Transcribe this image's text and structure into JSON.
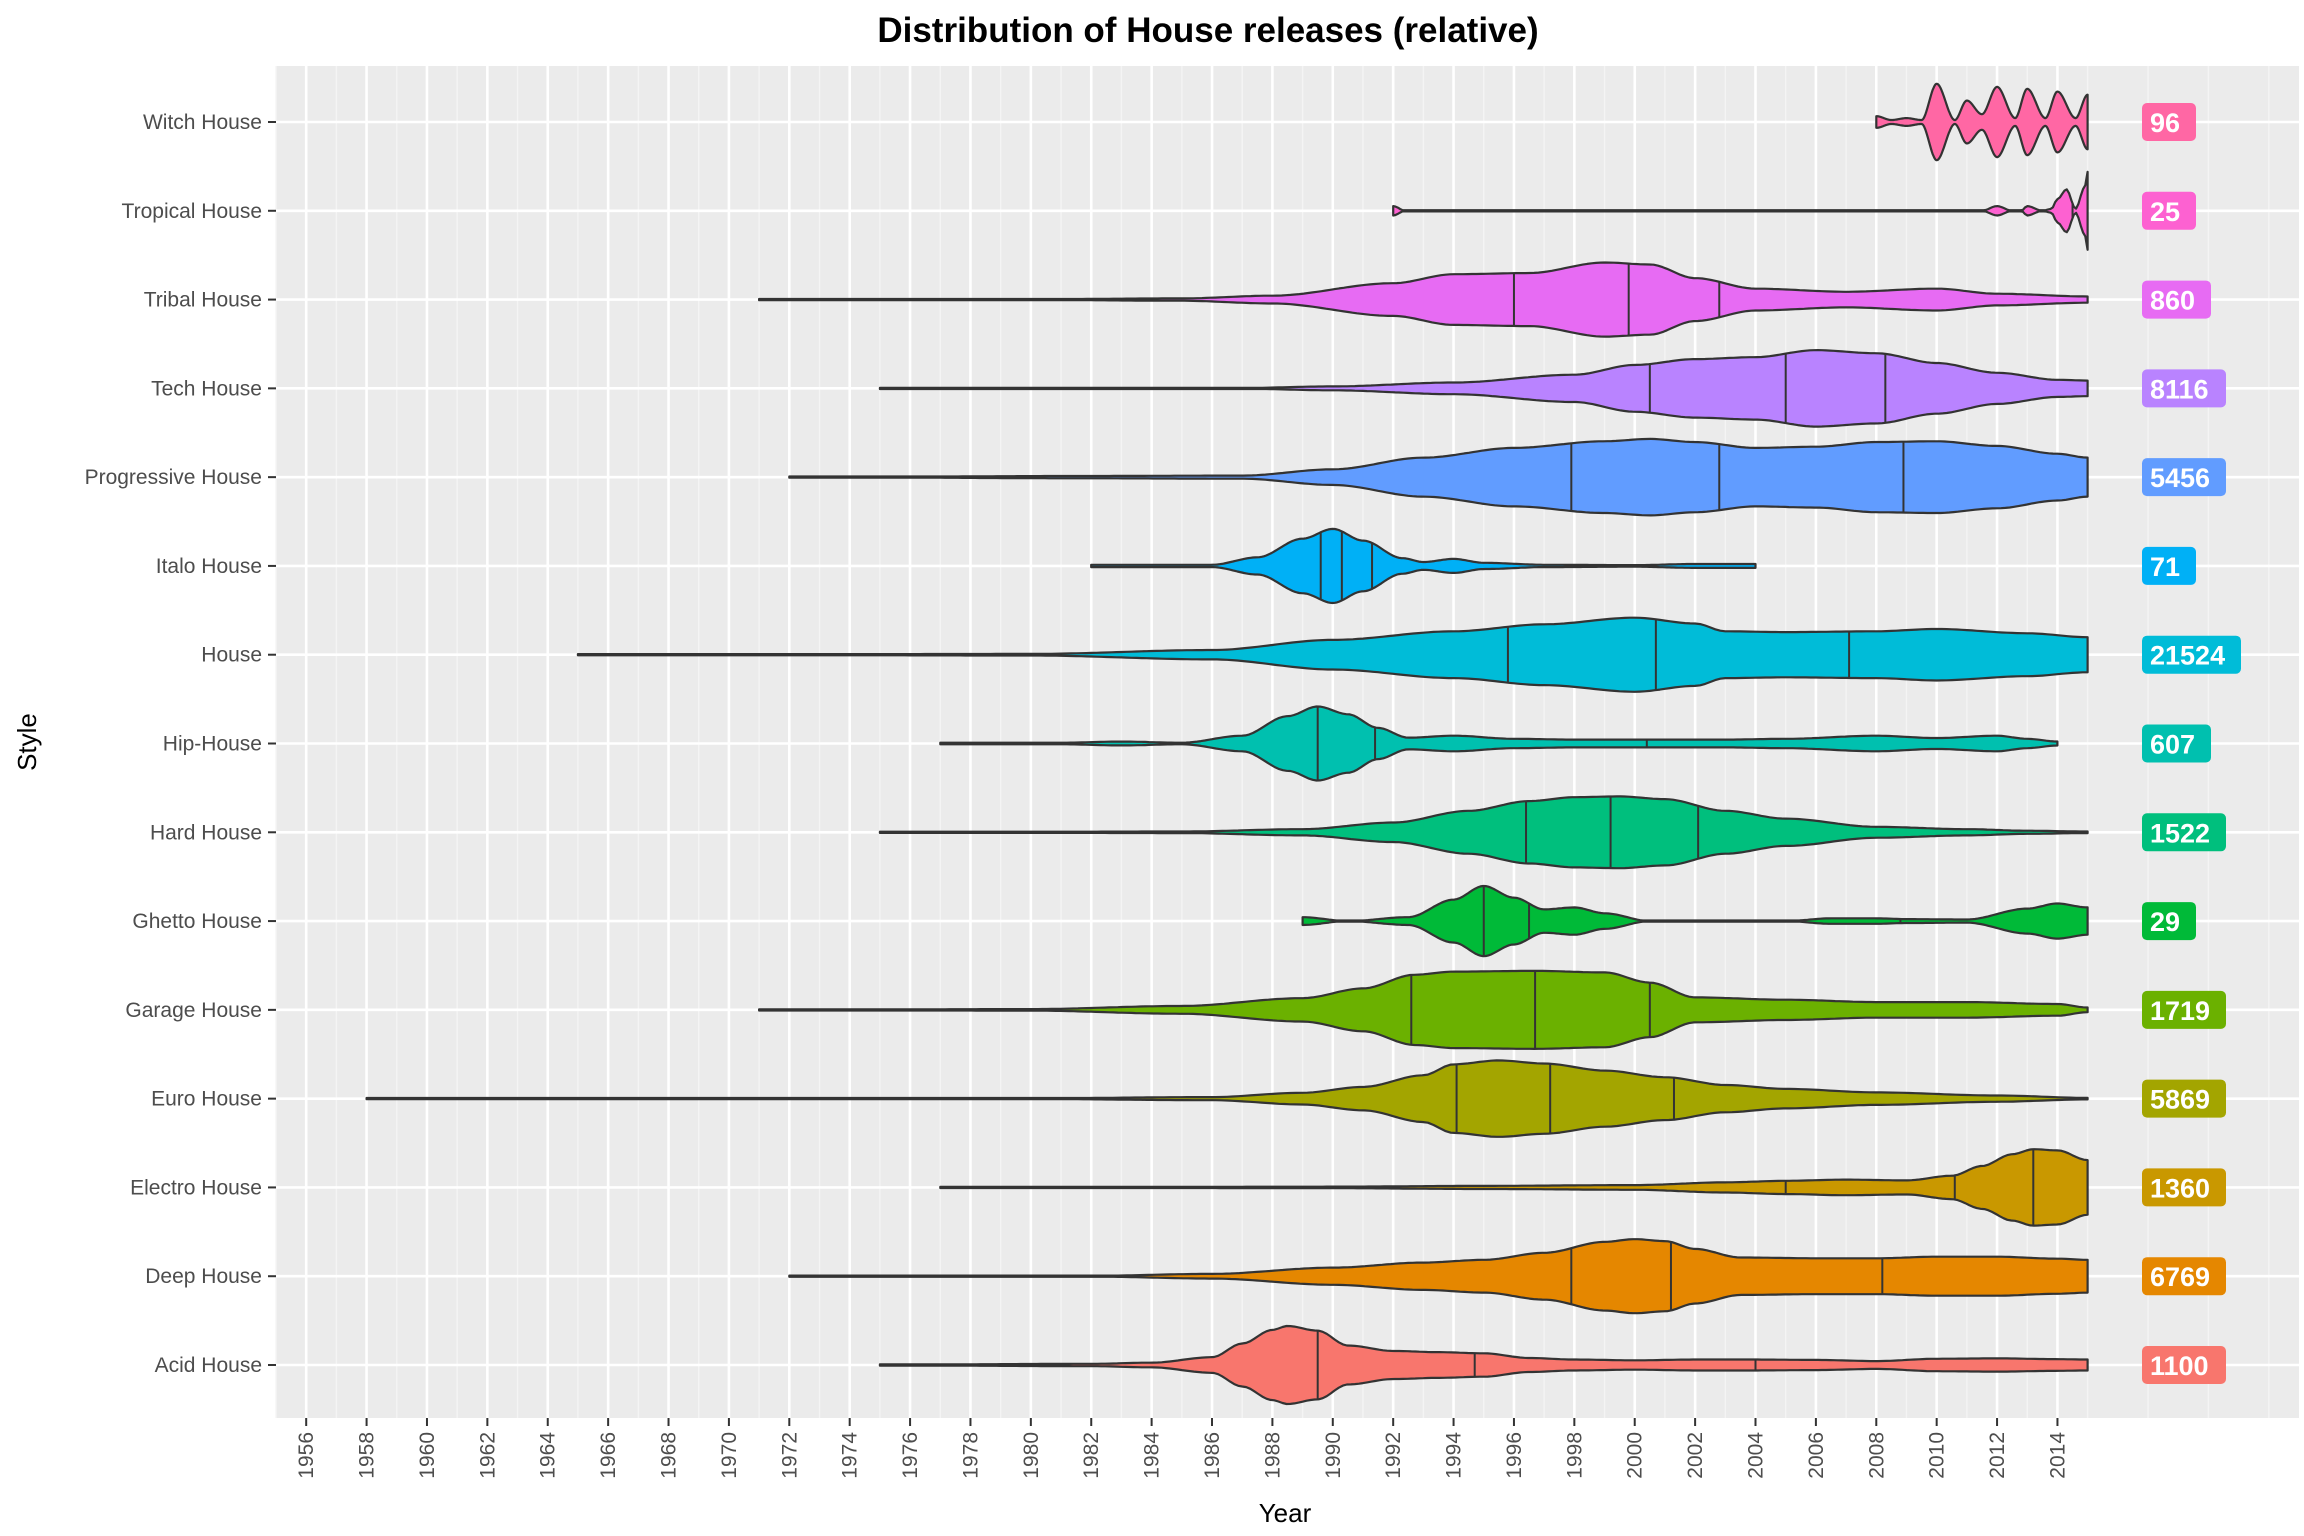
{
  "chart_data": {
    "type": "violin",
    "title": "Distribution of House releases (relative)",
    "xlabel": "Year",
    "ylabel": "Style",
    "xlim": [
      1955,
      2022
    ],
    "x_ticks": [
      1956,
      1958,
      1960,
      1962,
      1964,
      1966,
      1968,
      1970,
      1972,
      1974,
      1976,
      1978,
      1980,
      1982,
      1984,
      1986,
      1988,
      1990,
      1992,
      1994,
      1996,
      1998,
      2000,
      2002,
      2004,
      2006,
      2008,
      2010,
      2012,
      2014
    ],
    "grid": true,
    "legend": "none",
    "categories": [
      "Acid House",
      "Deep House",
      "Electro House",
      "Euro House",
      "Garage House",
      "Ghetto House",
      "Hard House",
      "Hip-House",
      "House",
      "Italo House",
      "Progressive House",
      "Tech House",
      "Tribal House",
      "Tropical House",
      "Witch House"
    ],
    "series": [
      {
        "name": "Acid House",
        "count": "1100",
        "color": "#F8766D",
        "range": [
          1975,
          2015
        ],
        "quantiles": [
          1989.5,
          1994.7,
          2004
        ],
        "density": [
          [
            1975,
            0.01
          ],
          [
            1982,
            0.03
          ],
          [
            1984,
            0.06
          ],
          [
            1986,
            0.2
          ],
          [
            1987,
            0.55
          ],
          [
            1988,
            0.9
          ],
          [
            1988.5,
            1.0
          ],
          [
            1989.5,
            0.88
          ],
          [
            1990.5,
            0.5
          ],
          [
            1992,
            0.36
          ],
          [
            1993.5,
            0.33
          ],
          [
            1995,
            0.3
          ],
          [
            1996.5,
            0.18
          ],
          [
            1998,
            0.14
          ],
          [
            2000,
            0.12
          ],
          [
            2002,
            0.14
          ],
          [
            2004,
            0.14
          ],
          [
            2006,
            0.13
          ],
          [
            2008,
            0.1
          ],
          [
            2010,
            0.16
          ],
          [
            2012,
            0.17
          ],
          [
            2014,
            0.15
          ],
          [
            2015,
            0.14
          ]
        ]
      },
      {
        "name": "Deep House",
        "count": "6769",
        "color": "#E58700",
        "range": [
          1972,
          2015
        ],
        "quantiles": [
          1997.9,
          2001.2,
          2008.2
        ],
        "density": [
          [
            1972,
            0.0
          ],
          [
            1982,
            0.01
          ],
          [
            1986,
            0.06
          ],
          [
            1990,
            0.22
          ],
          [
            1993,
            0.35
          ],
          [
            1995,
            0.42
          ],
          [
            1997,
            0.6
          ],
          [
            1999,
            0.88
          ],
          [
            2000,
            0.95
          ],
          [
            2001,
            0.9
          ],
          [
            2002,
            0.7
          ],
          [
            2003.5,
            0.48
          ],
          [
            2006,
            0.46
          ],
          [
            2008,
            0.46
          ],
          [
            2010,
            0.5
          ],
          [
            2012,
            0.5
          ],
          [
            2014,
            0.45
          ],
          [
            2015,
            0.42
          ]
        ]
      },
      {
        "name": "Electro House",
        "count": "1360",
        "color": "#C99800",
        "range": [
          1977,
          2015
        ],
        "quantiles": [
          2005,
          2010.6,
          2013.2
        ],
        "density": [
          [
            1977,
            0.0
          ],
          [
            1990,
            0.02
          ],
          [
            1995,
            0.04
          ],
          [
            2000,
            0.06
          ],
          [
            2003,
            0.13
          ],
          [
            2005,
            0.17
          ],
          [
            2007,
            0.2
          ],
          [
            2009,
            0.18
          ],
          [
            2010.5,
            0.3
          ],
          [
            2011.5,
            0.55
          ],
          [
            2012.5,
            0.85
          ],
          [
            2013.2,
            0.98
          ],
          [
            2014,
            0.95
          ],
          [
            2015,
            0.7
          ]
        ]
      },
      {
        "name": "Euro House",
        "count": "5869",
        "color": "#A3A500",
        "range": [
          1958,
          2015
        ],
        "quantiles": [
          1994.1,
          1997.2,
          2001.3
        ],
        "density": [
          [
            1958,
            0.0
          ],
          [
            1980,
            0.01
          ],
          [
            1986,
            0.04
          ],
          [
            1989,
            0.15
          ],
          [
            1991,
            0.3
          ],
          [
            1993,
            0.6
          ],
          [
            1994,
            0.88
          ],
          [
            1995.5,
            0.98
          ],
          [
            1997,
            0.9
          ],
          [
            1999,
            0.72
          ],
          [
            2001,
            0.55
          ],
          [
            2003,
            0.35
          ],
          [
            2005,
            0.25
          ],
          [
            2008,
            0.16
          ],
          [
            2012,
            0.08
          ],
          [
            2015,
            0.02
          ]
        ]
      },
      {
        "name": "Garage House",
        "count": "1719",
        "color": "#6BB100",
        "range": [
          1971,
          2015
        ],
        "quantiles": [
          1992.6,
          1996.7,
          2000.5
        ],
        "density": [
          [
            1971,
            0.0
          ],
          [
            1980,
            0.02
          ],
          [
            1985,
            0.1
          ],
          [
            1989,
            0.3
          ],
          [
            1991,
            0.55
          ],
          [
            1992.7,
            0.9
          ],
          [
            1994,
            0.98
          ],
          [
            1996.7,
            1.0
          ],
          [
            1999,
            0.96
          ],
          [
            2000.5,
            0.7
          ],
          [
            2002,
            0.32
          ],
          [
            2005,
            0.26
          ],
          [
            2008,
            0.2
          ],
          [
            2011,
            0.2
          ],
          [
            2014,
            0.15
          ],
          [
            2015,
            0.06
          ]
        ]
      },
      {
        "name": "Ghetto House",
        "count": "29",
        "color": "#00BA38",
        "range": [
          1989,
          2015
        ],
        "quantiles": [
          1995,
          1996.5,
          2008.8
        ],
        "density": [
          [
            1989,
            0.1
          ],
          [
            1990.5,
            0.0
          ],
          [
            1992.5,
            0.1
          ],
          [
            1994,
            0.55
          ],
          [
            1995,
            0.9
          ],
          [
            1996,
            0.6
          ],
          [
            1997,
            0.3
          ],
          [
            1998,
            0.35
          ],
          [
            1999,
            0.2
          ],
          [
            2000.5,
            0.0
          ],
          [
            2005,
            0.0
          ],
          [
            2006.5,
            0.07
          ],
          [
            2008,
            0.07
          ],
          [
            2009,
            0.05
          ],
          [
            2011,
            0.04
          ],
          [
            2013,
            0.32
          ],
          [
            2014,
            0.45
          ],
          [
            2015,
            0.35
          ]
        ]
      },
      {
        "name": "Hard House",
        "count": "1522",
        "color": "#00BF7D",
        "range": [
          1975,
          2015
        ],
        "quantiles": [
          1996.4,
          1999.2,
          2002.1
        ],
        "density": [
          [
            1975,
            0.0
          ],
          [
            1985,
            0.02
          ],
          [
            1989,
            0.08
          ],
          [
            1992,
            0.25
          ],
          [
            1994.5,
            0.55
          ],
          [
            1996.5,
            0.8
          ],
          [
            1998,
            0.9
          ],
          [
            1999.5,
            0.92
          ],
          [
            2001,
            0.85
          ],
          [
            2003,
            0.55
          ],
          [
            2005,
            0.35
          ],
          [
            2008,
            0.14
          ],
          [
            2011,
            0.08
          ],
          [
            2013,
            0.04
          ],
          [
            2015,
            0.02
          ]
        ]
      },
      {
        "name": "Hip-House",
        "count": "607",
        "color": "#00C0AF",
        "range": [
          1977,
          2014
        ],
        "quantiles": [
          1989.5,
          1991.4,
          2000.4
        ],
        "density": [
          [
            1977,
            0.02
          ],
          [
            1981,
            0.02
          ],
          [
            1983,
            0.05
          ],
          [
            1985,
            0.02
          ],
          [
            1987,
            0.2
          ],
          [
            1988.5,
            0.7
          ],
          [
            1989.5,
            0.95
          ],
          [
            1990.5,
            0.75
          ],
          [
            1991.5,
            0.4
          ],
          [
            1992.5,
            0.15
          ],
          [
            1994,
            0.2
          ],
          [
            1996,
            0.12
          ],
          [
            1998,
            0.1
          ],
          [
            2000,
            0.1
          ],
          [
            2003,
            0.1
          ],
          [
            2005,
            0.12
          ],
          [
            2008,
            0.2
          ],
          [
            2010,
            0.14
          ],
          [
            2012,
            0.2
          ],
          [
            2013,
            0.12
          ],
          [
            2014,
            0.05
          ]
        ]
      },
      {
        "name": "House",
        "count": "21524",
        "color": "#00BCD8",
        "range": [
          1965,
          2015
        ],
        "quantiles": [
          1995.8,
          2000.7,
          2007.1
        ],
        "density": [
          [
            1965,
            0.0
          ],
          [
            1980,
            0.02
          ],
          [
            1986,
            0.12
          ],
          [
            1990,
            0.38
          ],
          [
            1994,
            0.6
          ],
          [
            1997,
            0.78
          ],
          [
            2000,
            0.95
          ],
          [
            2002,
            0.8
          ],
          [
            2003,
            0.6
          ],
          [
            2005,
            0.58
          ],
          [
            2008,
            0.6
          ],
          [
            2010,
            0.66
          ],
          [
            2013,
            0.55
          ],
          [
            2015,
            0.45
          ]
        ]
      },
      {
        "name": "Italo House",
        "count": "71",
        "color": "#00B0F6",
        "range": [
          1982,
          2004
        ],
        "quantiles": [
          1989.6,
          1990.3,
          1991.3
        ],
        "density": [
          [
            1982,
            0.03
          ],
          [
            1986,
            0.03
          ],
          [
            1987.5,
            0.22
          ],
          [
            1989,
            0.7
          ],
          [
            1990,
            0.95
          ],
          [
            1991,
            0.65
          ],
          [
            1992.3,
            0.2
          ],
          [
            1993,
            0.1
          ],
          [
            1994,
            0.18
          ],
          [
            1995,
            0.08
          ],
          [
            1997,
            0.03
          ],
          [
            2000,
            0.02
          ],
          [
            2002,
            0.05
          ],
          [
            2004,
            0.05
          ]
        ]
      },
      {
        "name": "Progressive House",
        "count": "5456",
        "color": "#619CFF",
        "range": [
          1972,
          2015
        ],
        "quantiles": [
          1997.9,
          2002.8,
          2008.9
        ],
        "density": [
          [
            1972,
            0.0
          ],
          [
            1982,
            0.03
          ],
          [
            1987,
            0.04
          ],
          [
            1990,
            0.2
          ],
          [
            1993,
            0.5
          ],
          [
            1996,
            0.75
          ],
          [
            1999,
            0.92
          ],
          [
            2000.5,
            0.98
          ],
          [
            2002,
            0.9
          ],
          [
            2004,
            0.75
          ],
          [
            2006,
            0.78
          ],
          [
            2008,
            0.9
          ],
          [
            2010,
            0.92
          ],
          [
            2012,
            0.8
          ],
          [
            2014,
            0.6
          ],
          [
            2015,
            0.5
          ]
        ]
      },
      {
        "name": "Tech House",
        "count": "8116",
        "color": "#B983FF",
        "range": [
          1975,
          2015
        ],
        "quantiles": [
          2000.5,
          2005,
          2008.3
        ],
        "density": [
          [
            1975,
            0.0
          ],
          [
            1987,
            0.01
          ],
          [
            1990,
            0.05
          ],
          [
            1994,
            0.15
          ],
          [
            1998,
            0.35
          ],
          [
            2000,
            0.6
          ],
          [
            2002,
            0.75
          ],
          [
            2004,
            0.8
          ],
          [
            2006,
            0.98
          ],
          [
            2008,
            0.9
          ],
          [
            2010,
            0.65
          ],
          [
            2012,
            0.4
          ],
          [
            2014,
            0.22
          ],
          [
            2015,
            0.2
          ]
        ]
      },
      {
        "name": "Tribal House",
        "count": "860",
        "color": "#E76BF3",
        "range": [
          1971,
          2015
        ],
        "quantiles": [
          1996,
          1999.8,
          2002.8
        ],
        "density": [
          [
            1971,
            0.0
          ],
          [
            1980,
            0.01
          ],
          [
            1985,
            0.03
          ],
          [
            1988,
            0.1
          ],
          [
            1992,
            0.42
          ],
          [
            1994,
            0.65
          ],
          [
            1996.5,
            0.68
          ],
          [
            1999,
            0.95
          ],
          [
            2000.5,
            0.9
          ],
          [
            2002,
            0.55
          ],
          [
            2004,
            0.28
          ],
          [
            2007,
            0.2
          ],
          [
            2010,
            0.28
          ],
          [
            2012,
            0.15
          ],
          [
            2015,
            0.08
          ]
        ]
      },
      {
        "name": "Tropical House",
        "count": "25",
        "color": "#FD61D1",
        "range": [
          1992,
          2015
        ],
        "quantiles": [
          2014.5
        ],
        "density": [
          [
            1992,
            0.12
          ],
          [
            1992.4,
            0.0
          ],
          [
            2011.5,
            0.0
          ],
          [
            2012,
            0.12
          ],
          [
            2012.5,
            0.0
          ],
          [
            2012.8,
            0.0
          ],
          [
            2013,
            0.12
          ],
          [
            2013.5,
            0.0
          ],
          [
            2013.8,
            0.05
          ],
          [
            2014,
            0.3
          ],
          [
            2014.3,
            0.55
          ],
          [
            2014.6,
            0.05
          ],
          [
            2014.9,
            0.6
          ],
          [
            2015,
            1.0
          ]
        ]
      },
      {
        "name": "Witch House",
        "count": "96",
        "color": "#FF67A4",
        "range": [
          2008,
          2015
        ],
        "quantiles": [],
        "density": [
          [
            2008,
            0.15
          ],
          [
            2008.5,
            0.05
          ],
          [
            2009,
            0.1
          ],
          [
            2009.5,
            0.05
          ],
          [
            2010,
            0.98
          ],
          [
            2010.6,
            0.05
          ],
          [
            2011,
            0.55
          ],
          [
            2011.5,
            0.2
          ],
          [
            2012,
            0.9
          ],
          [
            2012.6,
            0.1
          ],
          [
            2013,
            0.85
          ],
          [
            2013.6,
            0.1
          ],
          [
            2014,
            0.78
          ],
          [
            2014.6,
            0.1
          ],
          [
            2015,
            0.7
          ]
        ]
      }
    ]
  }
}
